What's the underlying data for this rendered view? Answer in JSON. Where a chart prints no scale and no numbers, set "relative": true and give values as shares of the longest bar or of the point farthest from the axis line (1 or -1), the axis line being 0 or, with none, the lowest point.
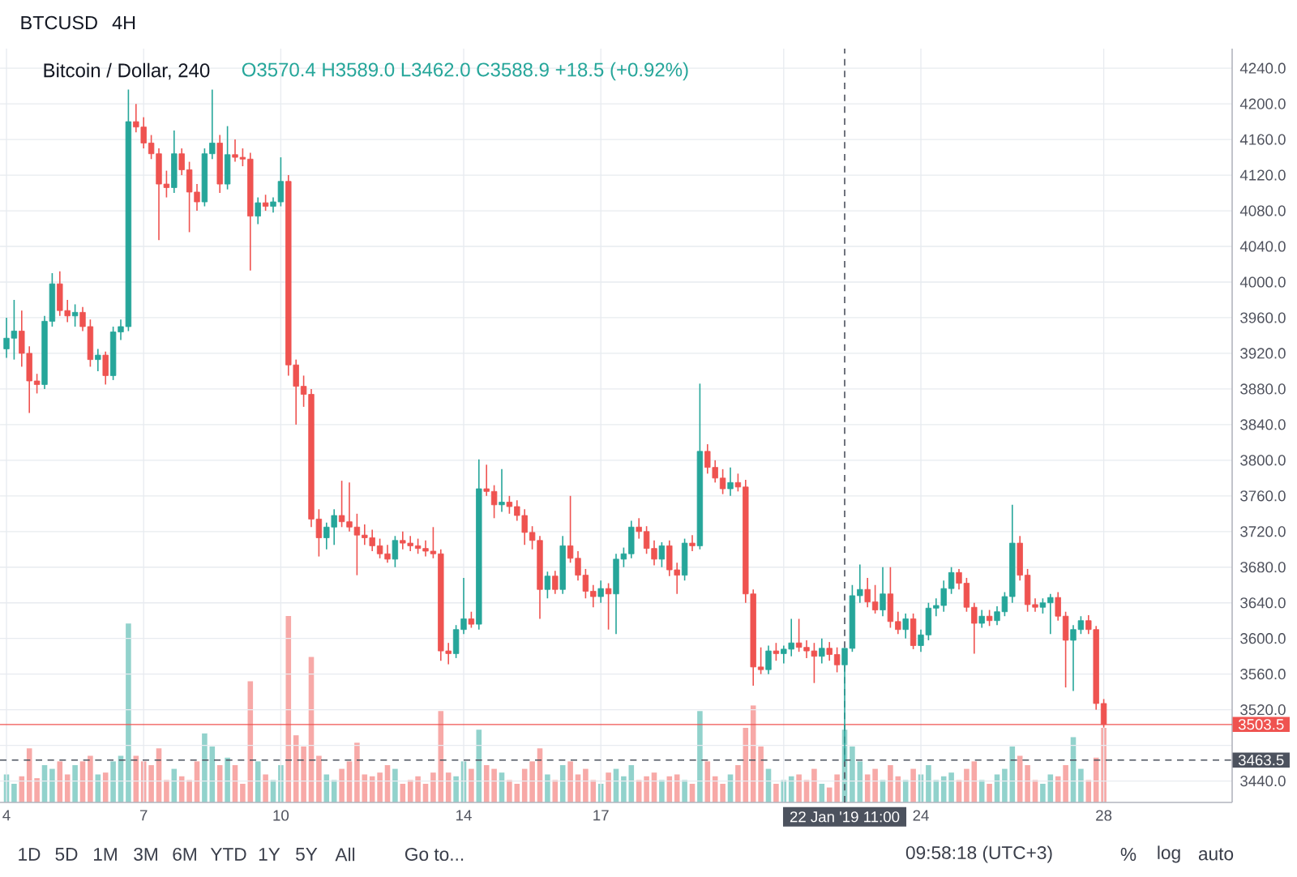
{
  "chart_data": [
    {
      "type": "candlestick",
      "title": "BTCUSD",
      "subtitle": "4H",
      "annotations": [
        "Bitcoin / Dollar, 240",
        "O3570.4 H3589.0 L3462.0 C3588.9 +18.5 (+0.92%)",
        "1D",
        "5D",
        "1M",
        "3M",
        "6M",
        "YTD",
        "1Y",
        "5Y",
        "All",
        "Go to...",
        "09:58:18 (UTC+3)",
        "%",
        "log",
        "auto"
      ],
      "x": [
        "2019-01-04T03:00",
        "2019-01-04T07:00",
        "2019-01-04T11:00",
        "2019-01-04T15:00",
        "2019-01-04T19:00",
        "2019-01-04T23:00",
        "2019-01-05T03:00",
        "2019-01-05T07:00",
        "2019-01-05T11:00",
        "2019-01-05T15:00",
        "2019-01-05T19:00",
        "2019-01-05T23:00",
        "2019-01-06T03:00",
        "2019-01-06T07:00",
        "2019-01-06T11:00",
        "2019-01-06T15:00",
        "2019-01-06T19:00",
        "2019-01-06T23:00",
        "2019-01-07T03:00",
        "2019-01-07T07:00",
        "2019-01-07T11:00",
        "2019-01-07T15:00",
        "2019-01-07T19:00",
        "2019-01-07T23:00",
        "2019-01-08T03:00",
        "2019-01-08T07:00",
        "2019-01-08T11:00",
        "2019-01-08T15:00",
        "2019-01-08T19:00",
        "2019-01-08T23:00",
        "2019-01-09T03:00",
        "2019-01-09T07:00",
        "2019-01-09T11:00",
        "2019-01-09T15:00",
        "2019-01-09T19:00",
        "2019-01-09T23:00",
        "2019-01-10T03:00",
        "2019-01-10T07:00",
        "2019-01-10T11:00",
        "2019-01-10T15:00",
        "2019-01-10T19:00",
        "2019-01-10T23:00",
        "2019-01-11T03:00",
        "2019-01-11T07:00",
        "2019-01-11T11:00",
        "2019-01-11T15:00",
        "2019-01-11T19:00",
        "2019-01-11T23:00",
        "2019-01-12T03:00",
        "2019-01-12T07:00",
        "2019-01-12T11:00",
        "2019-01-12T15:00",
        "2019-01-12T19:00",
        "2019-01-12T23:00",
        "2019-01-13T03:00",
        "2019-01-13T07:00",
        "2019-01-13T11:00",
        "2019-01-13T15:00",
        "2019-01-13T19:00",
        "2019-01-13T23:00",
        "2019-01-14T03:00",
        "2019-01-14T07:00",
        "2019-01-14T11:00",
        "2019-01-14T15:00",
        "2019-01-14T19:00",
        "2019-01-14T23:00",
        "2019-01-15T03:00",
        "2019-01-15T07:00",
        "2019-01-15T11:00",
        "2019-01-15T15:00",
        "2019-01-15T19:00",
        "2019-01-15T23:00",
        "2019-01-16T03:00",
        "2019-01-16T07:00",
        "2019-01-16T11:00",
        "2019-01-16T15:00",
        "2019-01-16T19:00",
        "2019-01-16T23:00",
        "2019-01-17T03:00",
        "2019-01-17T07:00",
        "2019-01-17T11:00",
        "2019-01-17T15:00",
        "2019-01-17T19:00",
        "2019-01-17T23:00",
        "2019-01-18T03:00",
        "2019-01-18T07:00",
        "2019-01-18T11:00",
        "2019-01-18T15:00",
        "2019-01-18T19:00",
        "2019-01-18T23:00",
        "2019-01-19T03:00",
        "2019-01-19T07:00",
        "2019-01-19T11:00",
        "2019-01-19T15:00",
        "2019-01-19T19:00",
        "2019-01-19T23:00",
        "2019-01-20T03:00",
        "2019-01-20T07:00",
        "2019-01-20T11:00",
        "2019-01-20T15:00",
        "2019-01-20T19:00",
        "2019-01-20T23:00",
        "2019-01-21T03:00",
        "2019-01-21T07:00",
        "2019-01-21T11:00",
        "2019-01-21T15:00",
        "2019-01-21T19:00",
        "2019-01-21T23:00",
        "2019-01-22T03:00",
        "2019-01-22T07:00",
        "2019-01-22T11:00",
        "2019-01-22T15:00",
        "2019-01-22T19:00",
        "2019-01-22T23:00",
        "2019-01-23T03:00",
        "2019-01-23T07:00",
        "2019-01-23T11:00",
        "2019-01-23T15:00",
        "2019-01-23T19:00",
        "2019-01-23T23:00",
        "2019-01-24T03:00",
        "2019-01-24T07:00",
        "2019-01-24T11:00",
        "2019-01-24T15:00",
        "2019-01-24T19:00",
        "2019-01-24T23:00",
        "2019-01-25T03:00",
        "2019-01-25T07:00",
        "2019-01-25T11:00",
        "2019-01-25T15:00",
        "2019-01-25T19:00",
        "2019-01-25T23:00",
        "2019-01-26T03:00",
        "2019-01-26T07:00",
        "2019-01-26T11:00",
        "2019-01-26T15:00",
        "2019-01-26T19:00",
        "2019-01-26T23:00",
        "2019-01-27T03:00",
        "2019-01-27T07:00",
        "2019-01-27T11:00",
        "2019-01-27T15:00",
        "2019-01-27T19:00",
        "2019-01-27T23:00",
        "2019-01-28T03:00"
      ],
      "ohlc": [
        [
          3925,
          3960,
          3915,
          3937
        ],
        [
          3937,
          3980,
          3913,
          3945
        ],
        [
          3945,
          3968,
          3905,
          3920
        ],
        [
          3920,
          3928,
          3853,
          3889
        ],
        [
          3889,
          3897,
          3875,
          3885
        ],
        [
          3885,
          3962,
          3880,
          3956
        ],
        [
          3956,
          4010,
          3950,
          3998
        ],
        [
          3998,
          4012,
          3962,
          3968
        ],
        [
          3968,
          3980,
          3955,
          3962
        ],
        [
          3962,
          3975,
          3950,
          3966
        ],
        [
          3966,
          3972,
          3945,
          3950
        ],
        [
          3950,
          3958,
          3905,
          3913
        ],
        [
          3913,
          3925,
          3900,
          3918
        ],
        [
          3918,
          3922,
          3885,
          3895
        ],
        [
          3895,
          3950,
          3890,
          3944
        ],
        [
          3944,
          3958,
          3935,
          3950
        ],
        [
          3950,
          4216,
          3945,
          4180
        ],
        [
          4180,
          4200,
          4168,
          4174
        ],
        [
          4174,
          4185,
          4150,
          4156
        ],
        [
          4156,
          4165,
          4138,
          4144
        ],
        [
          4144,
          4150,
          4047,
          4110
        ],
        [
          4110,
          4125,
          4095,
          4106
        ],
        [
          4106,
          4170,
          4100,
          4144
        ],
        [
          4144,
          4150,
          4120,
          4126
        ],
        [
          4126,
          4135,
          4056,
          4101
        ],
        [
          4101,
          4110,
          4080,
          4090
        ],
        [
          4090,
          4150,
          4085,
          4144
        ],
        [
          4144,
          4216,
          4138,
          4156
        ],
        [
          4156,
          4165,
          4100,
          4110
        ],
        [
          4110,
          4175,
          4104,
          4143
        ],
        [
          4143,
          4160,
          4135,
          4140
        ],
        [
          4140,
          4150,
          4130,
          4138
        ],
        [
          4138,
          4145,
          4013,
          4074
        ],
        [
          4074,
          4095,
          4065,
          4089
        ],
        [
          4089,
          4098,
          4080,
          4085
        ],
        [
          4085,
          4095,
          4078,
          4090
        ],
        [
          4090,
          4140,
          4085,
          4113
        ],
        [
          4113,
          4120,
          3895,
          3907
        ],
        [
          3907,
          3913,
          3840,
          3883
        ],
        [
          3883,
          3895,
          3860,
          3874
        ],
        [
          3874,
          3880,
          3725,
          3734
        ],
        [
          3734,
          3745,
          3692,
          3713
        ],
        [
          3713,
          3730,
          3700,
          3725
        ],
        [
          3725,
          3745,
          3705,
          3738
        ],
        [
          3738,
          3777,
          3725,
          3731
        ],
        [
          3731,
          3775,
          3720,
          3725
        ],
        [
          3725,
          3740,
          3671,
          3716
        ],
        [
          3716,
          3728,
          3705,
          3713
        ],
        [
          3713,
          3722,
          3698,
          3704
        ],
        [
          3704,
          3712,
          3690,
          3695
        ],
        [
          3695,
          3705,
          3685,
          3689
        ],
        [
          3689,
          3715,
          3680,
          3710
        ],
        [
          3710,
          3720,
          3700,
          3707
        ],
        [
          3707,
          3715,
          3698,
          3704
        ],
        [
          3704,
          3712,
          3695,
          3701
        ],
        [
          3701,
          3710,
          3692,
          3698
        ],
        [
          3698,
          3725,
          3690,
          3695
        ],
        [
          3695,
          3700,
          3575,
          3586
        ],
        [
          3586,
          3595,
          3571,
          3583
        ],
        [
          3583,
          3615,
          3578,
          3610
        ],
        [
          3610,
          3668,
          3605,
          3622
        ],
        [
          3622,
          3630,
          3612,
          3616
        ],
        [
          3616,
          3801,
          3610,
          3768
        ],
        [
          3768,
          3795,
          3760,
          3765
        ],
        [
          3765,
          3772,
          3735,
          3750
        ],
        [
          3750,
          3790,
          3742,
          3753
        ],
        [
          3753,
          3760,
          3740,
          3748
        ],
        [
          3748,
          3755,
          3732,
          3738
        ],
        [
          3738,
          3745,
          3705,
          3719
        ],
        [
          3719,
          3726,
          3700,
          3710
        ],
        [
          3710,
          3715,
          3622,
          3655
        ],
        [
          3655,
          3675,
          3645,
          3670
        ],
        [
          3670,
          3676,
          3650,
          3655
        ],
        [
          3655,
          3715,
          3650,
          3704
        ],
        [
          3704,
          3760,
          3685,
          3690
        ],
        [
          3690,
          3698,
          3665,
          3671
        ],
        [
          3671,
          3678,
          3645,
          3653
        ],
        [
          3653,
          3660,
          3635,
          3647
        ],
        [
          3647,
          3665,
          3640,
          3656
        ],
        [
          3656,
          3662,
          3610,
          3650
        ],
        [
          3650,
          3695,
          3605,
          3689
        ],
        [
          3689,
          3702,
          3680,
          3695
        ],
        [
          3695,
          3732,
          3690,
          3725
        ],
        [
          3725,
          3735,
          3712,
          3720
        ],
        [
          3720,
          3726,
          3695,
          3701
        ],
        [
          3701,
          3710,
          3682,
          3689
        ],
        [
          3689,
          3708,
          3680,
          3704
        ],
        [
          3704,
          3710,
          3670,
          3677
        ],
        [
          3677,
          3685,
          3650,
          3671
        ],
        [
          3671,
          3712,
          3665,
          3707
        ],
        [
          3707,
          3716,
          3698,
          3704
        ],
        [
          3704,
          3886,
          3700,
          3810
        ],
        [
          3810,
          3818,
          3785,
          3792
        ],
        [
          3792,
          3800,
          3775,
          3780
        ],
        [
          3780,
          3790,
          3762,
          3768
        ],
        [
          3768,
          3792,
          3760,
          3775
        ],
        [
          3775,
          3785,
          3765,
          3770
        ],
        [
          3770,
          3778,
          3640,
          3650
        ],
        [
          3650,
          3655,
          3547,
          3568
        ],
        [
          3568,
          3590,
          3560,
          3565
        ],
        [
          3565,
          3592,
          3560,
          3586
        ],
        [
          3586,
          3595,
          3575,
          3583
        ],
        [
          3583,
          3592,
          3572,
          3588
        ],
        [
          3588,
          3622,
          3580,
          3595
        ],
        [
          3595,
          3622,
          3585,
          3590
        ],
        [
          3590,
          3598,
          3578,
          3586
        ],
        [
          3586,
          3595,
          3550,
          3580
        ],
        [
          3580,
          3600,
          3572,
          3589
        ],
        [
          3589,
          3596,
          3575,
          3582
        ],
        [
          3582,
          3590,
          3562,
          3570.4
        ],
        [
          3570.4,
          3589.0,
          3462.0,
          3588.9
        ],
        [
          3588.9,
          3660,
          3585,
          3648
        ],
        [
          3648,
          3683,
          3640,
          3655
        ],
        [
          3655,
          3668,
          3635,
          3641
        ],
        [
          3641,
          3660,
          3628,
          3632
        ],
        [
          3632,
          3680,
          3625,
          3650
        ],
        [
          3650,
          3680,
          3612,
          3619
        ],
        [
          3619,
          3630,
          3605,
          3610
        ],
        [
          3610,
          3628,
          3600,
          3622
        ],
        [
          3622,
          3628,
          3588,
          3592
        ],
        [
          3592,
          3610,
          3585,
          3604
        ],
        [
          3604,
          3640,
          3598,
          3634
        ],
        [
          3634,
          3645,
          3625,
          3637
        ],
        [
          3637,
          3665,
          3630,
          3656
        ],
        [
          3656,
          3680,
          3650,
          3674
        ],
        [
          3674,
          3678,
          3655,
          3662
        ],
        [
          3662,
          3668,
          3630,
          3635
        ],
        [
          3635,
          3640,
          3583,
          3617
        ],
        [
          3617,
          3632,
          3612,
          3625
        ],
        [
          3625,
          3632,
          3614,
          3620
        ],
        [
          3620,
          3636,
          3615,
          3630
        ],
        [
          3630,
          3652,
          3625,
          3647
        ],
        [
          3647,
          3750,
          3640,
          3707
        ],
        [
          3707,
          3715,
          3665,
          3671
        ],
        [
          3671,
          3678,
          3630,
          3638
        ],
        [
          3638,
          3645,
          3630,
          3635
        ],
        [
          3635,
          3645,
          3628,
          3640
        ],
        [
          3640,
          3650,
          3605,
          3646
        ],
        [
          3646,
          3652,
          3620,
          3625
        ],
        [
          3625,
          3630,
          3545,
          3598
        ],
        [
          3598,
          3615,
          3541,
          3610
        ],
        [
          3610,
          3625,
          3605,
          3620
        ],
        [
          3620,
          3626,
          3605,
          3610
        ],
        [
          3610,
          3614,
          3520,
          3527
        ],
        [
          3527,
          3532,
          3500,
          3503.5
        ]
      ],
      "colors": [
        "#26a69a",
        "#26a69a",
        "#ef5350",
        "#ef5350",
        "#ef5350",
        "#26a69a",
        "#26a69a",
        "#ef5350",
        "#ef5350",
        "#26a69a",
        "#ef5350",
        "#ef5350",
        "#26a69a",
        "#ef5350",
        "#26a69a",
        "#26a69a",
        "#26a69a",
        "#ef5350",
        "#ef5350",
        "#ef5350",
        "#ef5350",
        "#ef5350",
        "#26a69a",
        "#ef5350",
        "#ef5350",
        "#ef5350",
        "#26a69a",
        "#26a69a",
        "#ef5350",
        "#26a69a",
        "#ef5350",
        "#ef5350",
        "#ef5350",
        "#26a69a",
        "#ef5350",
        "#26a69a",
        "#26a69a",
        "#ef5350",
        "#ef5350",
        "#ef5350",
        "#ef5350",
        "#ef5350",
        "#26a69a",
        "#26a69a",
        "#ef5350",
        "#ef5350",
        "#ef5350",
        "#ef5350",
        "#ef5350",
        "#ef5350",
        "#ef5350",
        "#26a69a",
        "#ef5350",
        "#ef5350",
        "#ef5350",
        "#ef5350",
        "#ef5350",
        "#ef5350",
        "#ef5350",
        "#26a69a",
        "#26a69a",
        "#ef5350",
        "#26a69a",
        "#ef5350",
        "#ef5350",
        "#26a69a",
        "#ef5350",
        "#ef5350",
        "#ef5350",
        "#ef5350",
        "#ef5350",
        "#26a69a",
        "#ef5350",
        "#26a69a",
        "#ef5350",
        "#ef5350",
        "#ef5350",
        "#ef5350",
        "#26a69a",
        "#ef5350",
        "#26a69a",
        "#26a69a",
        "#26a69a",
        "#ef5350",
        "#ef5350",
        "#ef5350",
        "#26a69a",
        "#ef5350",
        "#ef5350",
        "#26a69a",
        "#ef5350",
        "#26a69a",
        "#ef5350",
        "#ef5350",
        "#ef5350",
        "#26a69a",
        "#ef5350",
        "#ef5350",
        "#ef5350",
        "#ef5350",
        "#26a69a",
        "#ef5350",
        "#26a69a",
        "#26a69a",
        "#ef5350",
        "#ef5350",
        "#ef5350",
        "#26a69a",
        "#ef5350",
        "#ef5350",
        "#26a69a",
        "#26a69a",
        "#26a69a",
        "#ef5350",
        "#ef5350",
        "#26a69a",
        "#ef5350",
        "#ef5350",
        "#26a69a",
        "#ef5350",
        "#26a69a",
        "#26a69a",
        "#26a69a",
        "#26a69a",
        "#26a69a",
        "#ef5350",
        "#ef5350",
        "#ef5350",
        "#26a69a",
        "#ef5350",
        "#26a69a",
        "#26a69a",
        "#26a69a",
        "#ef5350",
        "#ef5350",
        "#ef5350",
        "#26a69a",
        "#26a69a",
        "#ef5350",
        "#ef5350",
        "#26a69a",
        "#26a69a",
        "#ef5350",
        "#ef5350",
        "#ef5350"
      ],
      "xlim": [
        "2019-01-03T23:36",
        "2019-01-30T22:24"
      ],
      "ylim": [
        3416,
        4262
      ],
      "xticks": [
        {
          "value": "2019-01-04T03:00",
          "label": "4"
        },
        {
          "value": "2019-01-07T03:00",
          "label": "7"
        },
        {
          "value": "2019-01-10T03:00",
          "label": "10"
        },
        {
          "value": "2019-01-14T03:00",
          "label": "14"
        },
        {
          "value": "2019-01-17T03:00",
          "label": "17"
        },
        {
          "value": "2019-01-21T03:00",
          "label": null
        },
        {
          "value": "2019-01-24T03:00",
          "label": "24"
        },
        {
          "value": "2019-01-28T03:00",
          "label": "28"
        }
      ],
      "yticks": [
        {
          "value": 3440,
          "label": "3440.0"
        },
        {
          "value": 3480,
          "label": null
        },
        {
          "value": 3520,
          "label": "3520.0"
        },
        {
          "value": 3560,
          "label": "3560.0"
        },
        {
          "value": 3600,
          "label": "3600.0"
        },
        {
          "value": 3640,
          "label": "3640.0"
        },
        {
          "value": 3680,
          "label": "3680.0"
        },
        {
          "value": 3720,
          "label": "3720.0"
        },
        {
          "value": 3760,
          "label": "3760.0"
        },
        {
          "value": 3800,
          "label": "3800.0"
        },
        {
          "value": 3840,
          "label": "3840.0"
        },
        {
          "value": 3880,
          "label": "3880.0"
        },
        {
          "value": 3920,
          "label": "3920.0"
        },
        {
          "value": 3960,
          "label": "3960.0"
        },
        {
          "value": 4000,
          "label": "4000.0"
        },
        {
          "value": 4040,
          "label": "4040.0"
        },
        {
          "value": 4080,
          "label": "4080.0"
        },
        {
          "value": 4120,
          "label": "4120.0"
        },
        {
          "value": 4160,
          "label": "4160.0"
        },
        {
          "value": 4200,
          "label": "4200.0"
        },
        {
          "value": 4240,
          "label": "4240.0"
        }
      ],
      "grid": true,
      "ref_lines": [
        {
          "axis": "y",
          "value": 3503.5,
          "label": "3503.5",
          "color": "#ef5350"
        },
        {
          "axis": "y",
          "value": 3463.5,
          "label": "3463.5",
          "color": "#4c525e",
          "line_style": "dashed"
        },
        {
          "axis": "x",
          "value": "2019-01-22T11:00",
          "label": "22 Jan '19 11:00",
          "color": "#4c525e",
          "line_style": "dashed"
        }
      ]
    },
    {
      "type": "bar",
      "relative": true,
      "x": [
        "2019-01-04T03:00",
        "2019-01-04T07:00",
        "2019-01-04T11:00",
        "2019-01-04T15:00",
        "2019-01-04T19:00",
        "2019-01-04T23:00",
        "2019-01-05T03:00",
        "2019-01-05T07:00",
        "2019-01-05T11:00",
        "2019-01-05T15:00",
        "2019-01-05T19:00",
        "2019-01-05T23:00",
        "2019-01-06T03:00",
        "2019-01-06T07:00",
        "2019-01-06T11:00",
        "2019-01-06T15:00",
        "2019-01-06T19:00",
        "2019-01-06T23:00",
        "2019-01-07T03:00",
        "2019-01-07T07:00",
        "2019-01-07T11:00",
        "2019-01-07T15:00",
        "2019-01-07T19:00",
        "2019-01-07T23:00",
        "2019-01-08T03:00",
        "2019-01-08T07:00",
        "2019-01-08T11:00",
        "2019-01-08T15:00",
        "2019-01-08T19:00",
        "2019-01-08T23:00",
        "2019-01-09T03:00",
        "2019-01-09T07:00",
        "2019-01-09T11:00",
        "2019-01-09T15:00",
        "2019-01-09T19:00",
        "2019-01-09T23:00",
        "2019-01-10T03:00",
        "2019-01-10T07:00",
        "2019-01-10T11:00",
        "2019-01-10T15:00",
        "2019-01-10T19:00",
        "2019-01-10T23:00",
        "2019-01-11T03:00",
        "2019-01-11T07:00",
        "2019-01-11T11:00",
        "2019-01-11T15:00",
        "2019-01-11T19:00",
        "2019-01-11T23:00",
        "2019-01-12T03:00",
        "2019-01-12T07:00",
        "2019-01-12T11:00",
        "2019-01-12T15:00",
        "2019-01-12T19:00",
        "2019-01-12T23:00",
        "2019-01-13T03:00",
        "2019-01-13T07:00",
        "2019-01-13T11:00",
        "2019-01-13T15:00",
        "2019-01-13T19:00",
        "2019-01-13T23:00",
        "2019-01-14T03:00",
        "2019-01-14T07:00",
        "2019-01-14T11:00",
        "2019-01-14T15:00",
        "2019-01-14T19:00",
        "2019-01-14T23:00",
        "2019-01-15T03:00",
        "2019-01-15T07:00",
        "2019-01-15T11:00",
        "2019-01-15T15:00",
        "2019-01-15T19:00",
        "2019-01-15T23:00",
        "2019-01-16T03:00",
        "2019-01-16T07:00",
        "2019-01-16T11:00",
        "2019-01-16T15:00",
        "2019-01-16T19:00",
        "2019-01-16T23:00",
        "2019-01-17T03:00",
        "2019-01-17T07:00",
        "2019-01-17T11:00",
        "2019-01-17T15:00",
        "2019-01-17T19:00",
        "2019-01-17T23:00",
        "2019-01-18T03:00",
        "2019-01-18T07:00",
        "2019-01-18T11:00",
        "2019-01-18T15:00",
        "2019-01-18T19:00",
        "2019-01-18T23:00",
        "2019-01-19T03:00",
        "2019-01-19T07:00",
        "2019-01-19T11:00",
        "2019-01-19T15:00",
        "2019-01-19T19:00",
        "2019-01-19T23:00",
        "2019-01-20T03:00",
        "2019-01-20T07:00",
        "2019-01-20T11:00",
        "2019-01-20T15:00",
        "2019-01-20T19:00",
        "2019-01-20T23:00",
        "2019-01-21T03:00",
        "2019-01-21T07:00",
        "2019-01-21T11:00",
        "2019-01-21T15:00",
        "2019-01-21T19:00",
        "2019-01-21T23:00",
        "2019-01-22T03:00",
        "2019-01-22T07:00",
        "2019-01-22T11:00",
        "2019-01-22T15:00",
        "2019-01-22T19:00",
        "2019-01-22T23:00",
        "2019-01-23T03:00",
        "2019-01-23T07:00",
        "2019-01-23T11:00",
        "2019-01-23T15:00",
        "2019-01-23T19:00",
        "2019-01-23T23:00",
        "2019-01-24T03:00",
        "2019-01-24T07:00",
        "2019-01-24T11:00",
        "2019-01-24T15:00",
        "2019-01-24T19:00",
        "2019-01-24T23:00",
        "2019-01-25T03:00",
        "2019-01-25T07:00",
        "2019-01-25T11:00",
        "2019-01-25T15:00",
        "2019-01-25T19:00",
        "2019-01-25T23:00",
        "2019-01-26T03:00",
        "2019-01-26T07:00",
        "2019-01-26T11:00",
        "2019-01-26T15:00",
        "2019-01-26T19:00",
        "2019-01-26T23:00",
        "2019-01-27T03:00",
        "2019-01-27T07:00",
        "2019-01-27T11:00",
        "2019-01-27T15:00",
        "2019-01-27T19:00",
        "2019-01-27T23:00",
        "2019-01-28T03:00"
      ],
      "values": [
        0.15,
        0.1,
        0.14,
        0.29,
        0.13,
        0.2,
        0.18,
        0.22,
        0.15,
        0.2,
        0.22,
        0.25,
        0.15,
        0.16,
        0.22,
        0.25,
        0.96,
        0.25,
        0.22,
        0.2,
        0.29,
        0.12,
        0.18,
        0.14,
        0.12,
        0.22,
        0.37,
        0.3,
        0.2,
        0.24,
        0.2,
        0.1,
        0.65,
        0.22,
        0.15,
        0.12,
        0.2,
        1,
        0.36,
        0.3,
        0.78,
        0.25,
        0.15,
        0.12,
        0.18,
        0.22,
        0.32,
        0.15,
        0.14,
        0.16,
        0.2,
        0.18,
        0.1,
        0.12,
        0.14,
        0.1,
        0.16,
        0.49,
        0.16,
        0.14,
        0.22,
        0.18,
        0.39,
        0.2,
        0.18,
        0.16,
        0.12,
        0.1,
        0.18,
        0.22,
        0.29,
        0.15,
        0.12,
        0.2,
        0.22,
        0.15,
        0.18,
        0.12,
        0.1,
        0.16,
        0.18,
        0.14,
        0.2,
        0.12,
        0.14,
        0.16,
        0.12,
        0.14,
        0.15,
        0.12,
        0.1,
        0.49,
        0.22,
        0.14,
        0.1,
        0.15,
        0.2,
        0.4,
        0.52,
        0.3,
        0.18,
        0.1,
        0.12,
        0.14,
        0.15,
        0.12,
        0.18,
        0.1,
        0.08,
        0.15,
        0.39,
        0.3,
        0.22,
        0.15,
        0.18,
        0.12,
        0.2,
        0.14,
        0.12,
        0.18,
        0.15,
        0.2,
        0.12,
        0.14,
        0.16,
        0.12,
        0.18,
        0.22,
        0.12,
        0.1,
        0.15,
        0.18,
        0.3,
        0.25,
        0.2,
        0.12,
        0.1,
        0.15,
        0.14,
        0.2,
        0.35,
        0.18,
        0.12,
        0.24,
        0.4
      ],
      "colors": [
        "#92d2cc",
        "#92d2cc",
        "#f7a9a7",
        "#f7a9a7",
        "#f7a9a7",
        "#92d2cc",
        "#92d2cc",
        "#f7a9a7",
        "#f7a9a7",
        "#92d2cc",
        "#f7a9a7",
        "#f7a9a7",
        "#92d2cc",
        "#f7a9a7",
        "#92d2cc",
        "#92d2cc",
        "#92d2cc",
        "#f7a9a7",
        "#f7a9a7",
        "#f7a9a7",
        "#f7a9a7",
        "#f7a9a7",
        "#92d2cc",
        "#f7a9a7",
        "#f7a9a7",
        "#f7a9a7",
        "#92d2cc",
        "#92d2cc",
        "#f7a9a7",
        "#92d2cc",
        "#f7a9a7",
        "#f7a9a7",
        "#f7a9a7",
        "#92d2cc",
        "#f7a9a7",
        "#92d2cc",
        "#92d2cc",
        "#f7a9a7",
        "#f7a9a7",
        "#f7a9a7",
        "#f7a9a7",
        "#f7a9a7",
        "#92d2cc",
        "#92d2cc",
        "#f7a9a7",
        "#f7a9a7",
        "#f7a9a7",
        "#f7a9a7",
        "#f7a9a7",
        "#f7a9a7",
        "#f7a9a7",
        "#92d2cc",
        "#f7a9a7",
        "#f7a9a7",
        "#f7a9a7",
        "#f7a9a7",
        "#f7a9a7",
        "#f7a9a7",
        "#f7a9a7",
        "#92d2cc",
        "#92d2cc",
        "#f7a9a7",
        "#92d2cc",
        "#f7a9a7",
        "#f7a9a7",
        "#92d2cc",
        "#f7a9a7",
        "#f7a9a7",
        "#f7a9a7",
        "#f7a9a7",
        "#f7a9a7",
        "#92d2cc",
        "#f7a9a7",
        "#92d2cc",
        "#f7a9a7",
        "#f7a9a7",
        "#f7a9a7",
        "#f7a9a7",
        "#92d2cc",
        "#f7a9a7",
        "#92d2cc",
        "#92d2cc",
        "#92d2cc",
        "#f7a9a7",
        "#f7a9a7",
        "#f7a9a7",
        "#92d2cc",
        "#f7a9a7",
        "#f7a9a7",
        "#92d2cc",
        "#f7a9a7",
        "#92d2cc",
        "#f7a9a7",
        "#f7a9a7",
        "#f7a9a7",
        "#92d2cc",
        "#f7a9a7",
        "#f7a9a7",
        "#f7a9a7",
        "#f7a9a7",
        "#92d2cc",
        "#f7a9a7",
        "#92d2cc",
        "#92d2cc",
        "#f7a9a7",
        "#f7a9a7",
        "#f7a9a7",
        "#92d2cc",
        "#f7a9a7",
        "#f7a9a7",
        "#92d2cc",
        "#92d2cc",
        "#92d2cc",
        "#f7a9a7",
        "#f7a9a7",
        "#92d2cc",
        "#f7a9a7",
        "#f7a9a7",
        "#92d2cc",
        "#f7a9a7",
        "#92d2cc",
        "#92d2cc",
        "#92d2cc",
        "#92d2cc",
        "#92d2cc",
        "#f7a9a7",
        "#f7a9a7",
        "#f7a9a7",
        "#92d2cc",
        "#f7a9a7",
        "#92d2cc",
        "#92d2cc",
        "#92d2cc",
        "#f7a9a7",
        "#f7a9a7",
        "#f7a9a7",
        "#92d2cc",
        "#92d2cc",
        "#f7a9a7",
        "#f7a9a7",
        "#92d2cc",
        "#92d2cc",
        "#f7a9a7",
        "#f7a9a7",
        "#f7a9a7"
      ],
      "xlim": [
        "2019-01-03T23:36",
        "2019-01-30T22:24"
      ]
    }
  ]
}
